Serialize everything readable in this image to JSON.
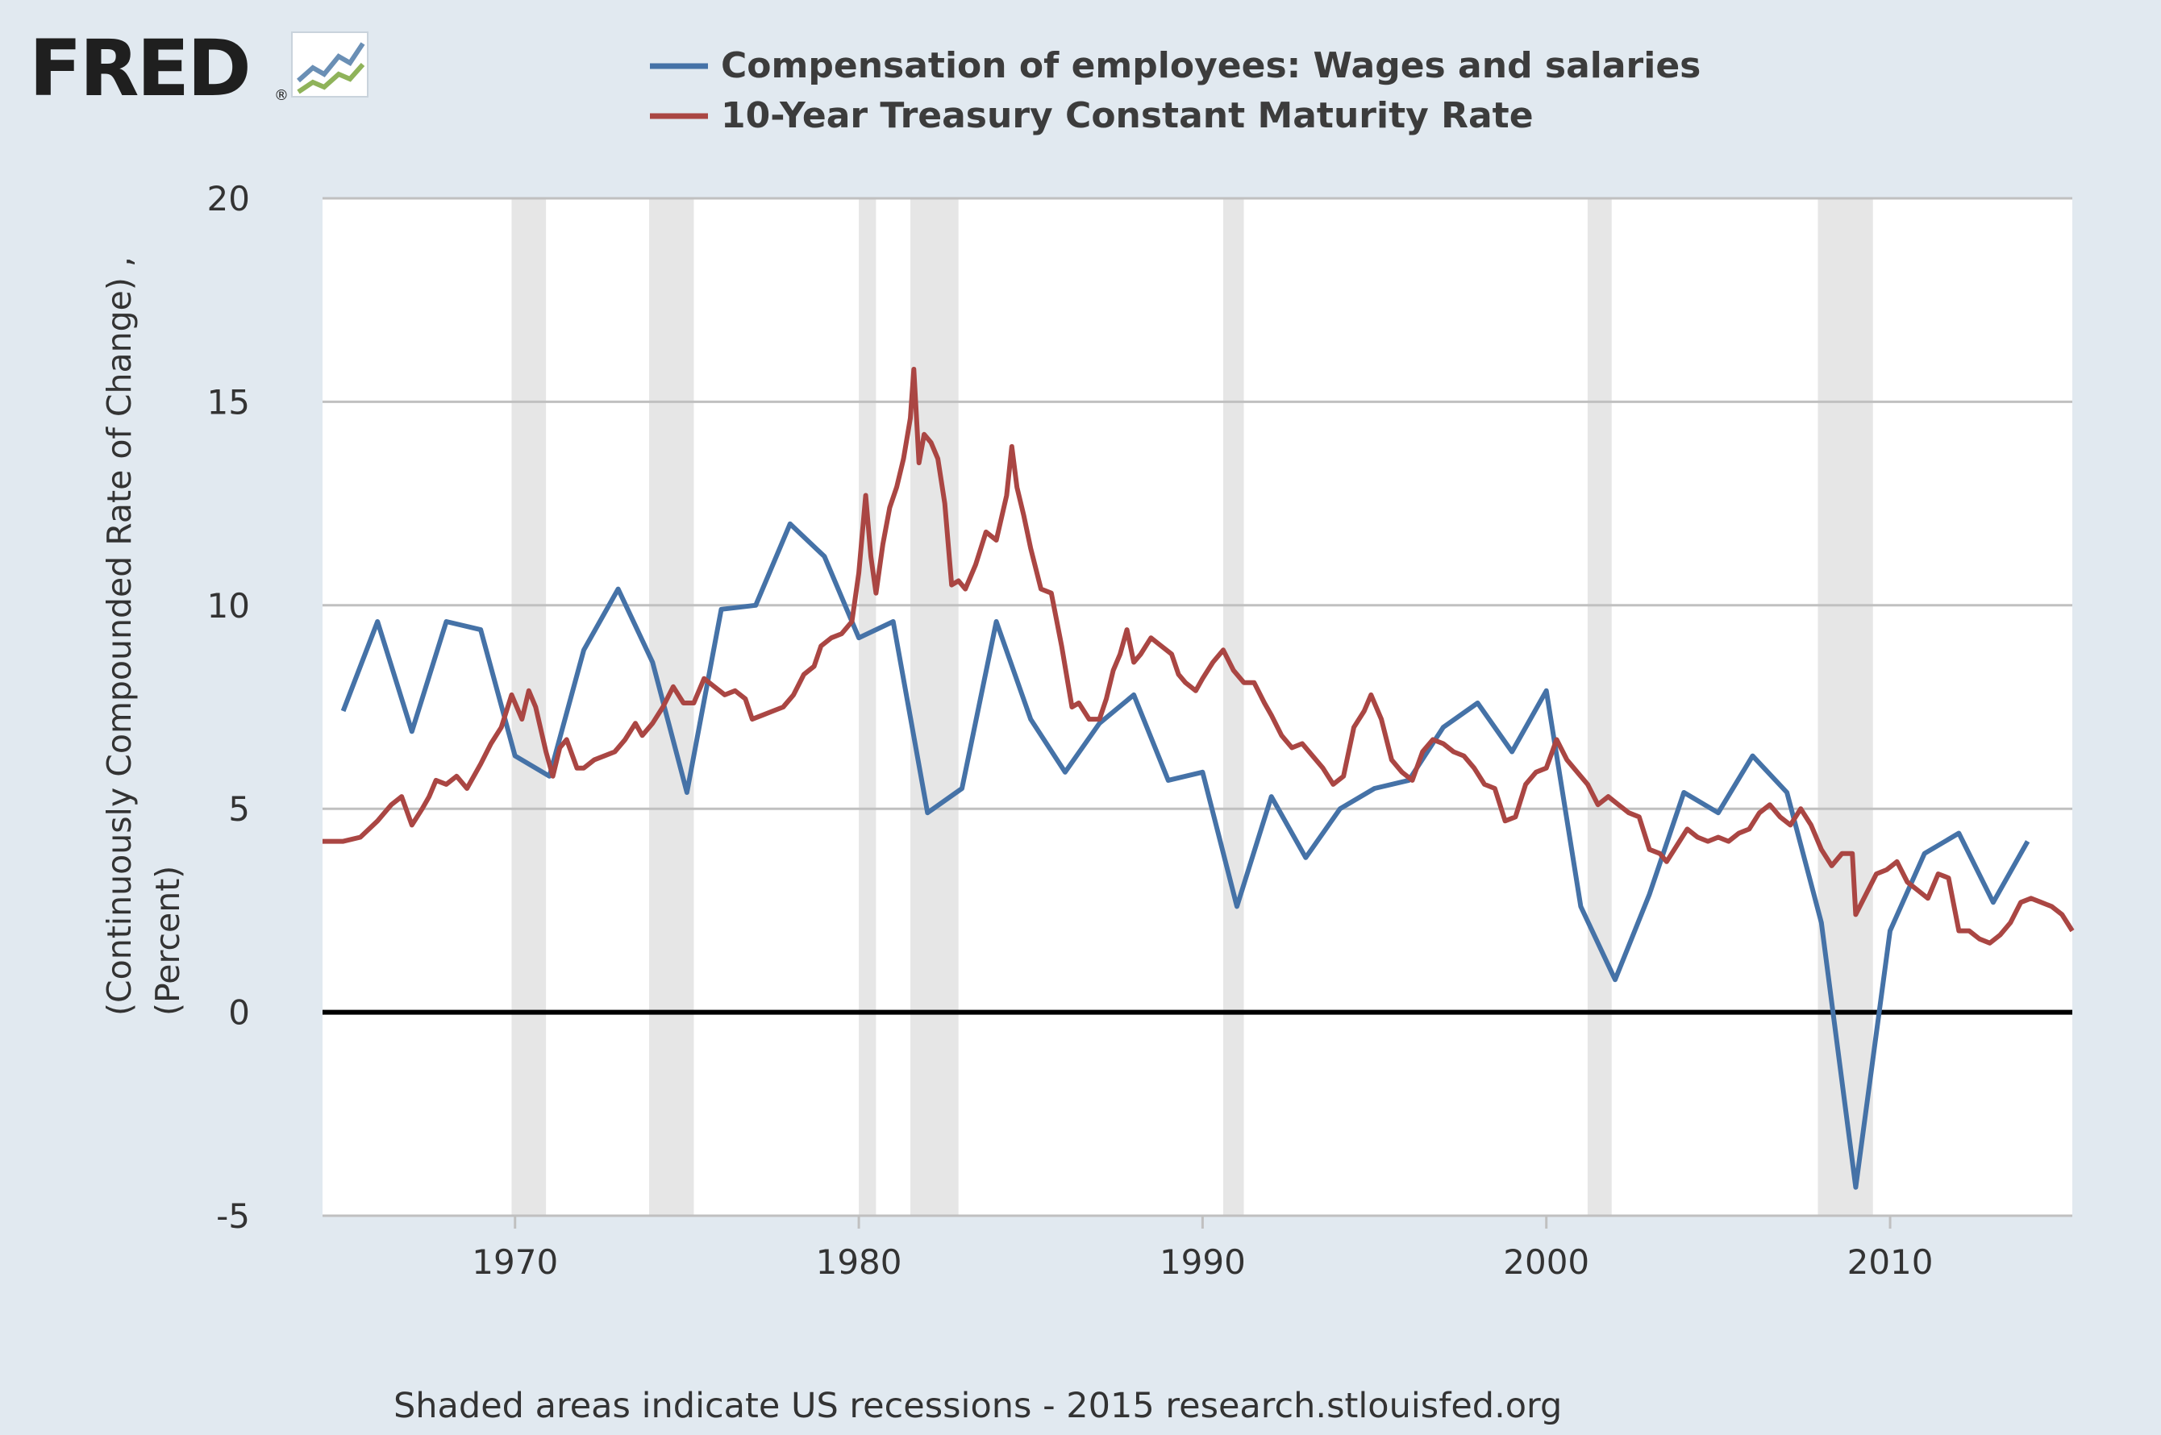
{
  "logo": {
    "text": "FRED",
    "mark": "®",
    "icon": "fred-chart-icon"
  },
  "footer": {
    "note": "Shaded areas indicate US recessions - 2015 research.stlouisfed.org"
  },
  "chart_data": {
    "type": "line",
    "title": "",
    "xlabel": "",
    "ylabel_lines": [
      "(Continuously Compounded Rate of Change) ,",
      "(Percent)"
    ],
    "xlim": [
      1964.4,
      2015.3
    ],
    "ylim": [
      -5,
      20
    ],
    "yticks": [
      -5,
      0,
      5,
      10,
      15,
      20
    ],
    "xticks": [
      1970,
      1980,
      1990,
      2000,
      2010
    ],
    "grid": true,
    "legend_position": "top",
    "zero_line": true,
    "recessions": [
      [
        1969.9,
        1970.9
      ],
      [
        1973.9,
        1975.2
      ],
      [
        1980.0,
        1980.5
      ],
      [
        1981.5,
        1982.9
      ],
      [
        1990.6,
        1991.2
      ],
      [
        2001.2,
        2001.9
      ],
      [
        2007.9,
        2009.5
      ]
    ],
    "series": [
      {
        "name": "Compensation of employees: Wages and salaries",
        "color": "#4572a7",
        "x": [
          1965,
          1966,
          1967,
          1968,
          1969,
          1970,
          1971,
          1972,
          1973,
          1974,
          1975,
          1976,
          1977,
          1978,
          1979,
          1980,
          1981,
          1982,
          1983,
          1984,
          1985,
          1986,
          1987,
          1988,
          1989,
          1990,
          1991,
          1992,
          1993,
          1994,
          1995,
          1996,
          1997,
          1998,
          1999,
          2000,
          2001,
          2002,
          2003,
          2004,
          2005,
          2006,
          2007,
          2008,
          2009,
          2010,
          2011,
          2012,
          2013,
          2014
        ],
        "y": [
          7.4,
          9.6,
          6.9,
          9.6,
          9.4,
          6.3,
          5.8,
          8.9,
          10.4,
          8.6,
          5.4,
          9.9,
          10.0,
          12.0,
          11.2,
          9.2,
          9.6,
          4.9,
          5.5,
          9.6,
          7.2,
          5.9,
          7.1,
          7.8,
          5.7,
          5.9,
          2.6,
          5.3,
          3.8,
          5.0,
          5.5,
          5.7,
          7.0,
          7.6,
          6.4,
          7.9,
          2.6,
          0.8,
          2.9,
          5.4,
          4.9,
          6.3,
          5.4,
          2.2,
          -4.3,
          2.0,
          3.9,
          4.4,
          2.7,
          4.2
        ]
      },
      {
        "name": "10-Year Treasury Constant Maturity Rate",
        "color": "#aa4643",
        "x": [
          1964.4,
          1965.0,
          1965.5,
          1966.0,
          1966.4,
          1966.7,
          1967.0,
          1967.3,
          1967.5,
          1967.7,
          1968.0,
          1968.3,
          1968.6,
          1969.0,
          1969.3,
          1969.6,
          1969.9,
          1970.2,
          1970.4,
          1970.6,
          1970.9,
          1971.1,
          1971.3,
          1971.5,
          1971.8,
          1972.0,
          1972.3,
          1972.6,
          1972.9,
          1973.2,
          1973.5,
          1973.7,
          1974.0,
          1974.3,
          1974.6,
          1974.9,
          1975.2,
          1975.5,
          1975.8,
          1976.1,
          1976.4,
          1976.7,
          1976.9,
          1977.2,
          1977.5,
          1977.8,
          1978.1,
          1978.4,
          1978.7,
          1978.9,
          1979.2,
          1979.5,
          1979.8,
          1980.0,
          1980.2,
          1980.35,
          1980.5,
          1980.7,
          1980.9,
          1981.1,
          1981.3,
          1981.5,
          1981.6,
          1981.75,
          1981.9,
          1982.1,
          1982.3,
          1982.5,
          1982.7,
          1982.9,
          1983.1,
          1983.4,
          1983.7,
          1984.0,
          1984.3,
          1984.45,
          1984.6,
          1984.8,
          1985.0,
          1985.3,
          1985.6,
          1985.9,
          1986.2,
          1986.4,
          1986.7,
          1987.0,
          1987.2,
          1987.4,
          1987.6,
          1987.8,
          1988.0,
          1988.2,
          1988.5,
          1988.8,
          1989.1,
          1989.3,
          1989.5,
          1989.8,
          1990.0,
          1990.3,
          1990.6,
          1990.9,
          1991.2,
          1991.5,
          1991.8,
          1992.0,
          1992.3,
          1992.6,
          1992.9,
          1993.2,
          1993.5,
          1993.8,
          1994.1,
          1994.4,
          1994.7,
          1994.9,
          1995.2,
          1995.5,
          1995.8,
          1996.1,
          1996.4,
          1996.7,
          1997.0,
          1997.3,
          1997.6,
          1997.9,
          1998.2,
          1998.5,
          1998.8,
          1999.1,
          1999.4,
          1999.7,
          2000.0,
          2000.3,
          2000.6,
          2000.9,
          2001.2,
          2001.5,
          2001.8,
          2002.1,
          2002.4,
          2002.7,
          2003.0,
          2003.3,
          2003.5,
          2003.8,
          2004.1,
          2004.4,
          2004.7,
          2005.0,
          2005.3,
          2005.6,
          2005.9,
          2006.2,
          2006.5,
          2006.8,
          2007.1,
          2007.4,
          2007.7,
          2008.0,
          2008.3,
          2008.6,
          2008.9,
          2009.0,
          2009.3,
          2009.6,
          2009.9,
          2010.2,
          2010.5,
          2010.8,
          2011.1,
          2011.4,
          2011.7,
          2012.0,
          2012.3,
          2012.6,
          2012.9,
          2013.2,
          2013.5,
          2013.8,
          2014.1,
          2014.4,
          2014.7,
          2015.0,
          2015.3
        ],
        "y": [
          4.2,
          4.2,
          4.3,
          4.7,
          5.1,
          5.3,
          4.6,
          5.0,
          5.3,
          5.7,
          5.6,
          5.8,
          5.5,
          6.1,
          6.6,
          7.0,
          7.8,
          7.2,
          7.9,
          7.5,
          6.4,
          5.8,
          6.5,
          6.7,
          6.0,
          6.0,
          6.2,
          6.3,
          6.4,
          6.7,
          7.1,
          6.8,
          7.1,
          7.5,
          8.0,
          7.6,
          7.6,
          8.2,
          8.0,
          7.8,
          7.9,
          7.7,
          7.2,
          7.3,
          7.4,
          7.5,
          7.8,
          8.3,
          8.5,
          9.0,
          9.2,
          9.3,
          9.6,
          10.8,
          12.7,
          11.2,
          10.3,
          11.5,
          12.4,
          12.9,
          13.6,
          14.6,
          15.8,
          13.5,
          14.2,
          14.0,
          13.6,
          12.5,
          10.5,
          10.6,
          10.4,
          11.0,
          11.8,
          11.6,
          12.7,
          13.9,
          12.9,
          12.2,
          11.4,
          10.4,
          10.3,
          9.0,
          7.5,
          7.6,
          7.2,
          7.2,
          7.7,
          8.4,
          8.8,
          9.4,
          8.6,
          8.8,
          9.2,
          9.0,
          8.8,
          8.3,
          8.1,
          7.9,
          8.2,
          8.6,
          8.9,
          8.4,
          8.1,
          8.1,
          7.6,
          7.3,
          6.8,
          6.5,
          6.6,
          6.3,
          6.0,
          5.6,
          5.8,
          7.0,
          7.4,
          7.8,
          7.2,
          6.2,
          5.9,
          5.7,
          6.4,
          6.7,
          6.6,
          6.4,
          6.3,
          6.0,
          5.6,
          5.5,
          4.7,
          4.8,
          5.6,
          5.9,
          6.0,
          6.7,
          6.2,
          5.9,
          5.6,
          5.1,
          5.3,
          5.1,
          4.9,
          4.8,
          4.0,
          3.9,
          3.7,
          4.1,
          4.5,
          4.3,
          4.2,
          4.3,
          4.2,
          4.4,
          4.5,
          4.9,
          5.1,
          4.8,
          4.6,
          5.0,
          4.6,
          4.0,
          3.6,
          3.9,
          3.9,
          2.4,
          2.9,
          3.4,
          3.5,
          3.7,
          3.2,
          3.0,
          2.8,
          3.4,
          3.3,
          2.0,
          2.0,
          1.8,
          1.7,
          1.9,
          2.2,
          2.7,
          2.8,
          2.7,
          2.6,
          2.4,
          2.0
        ]
      }
    ]
  }
}
